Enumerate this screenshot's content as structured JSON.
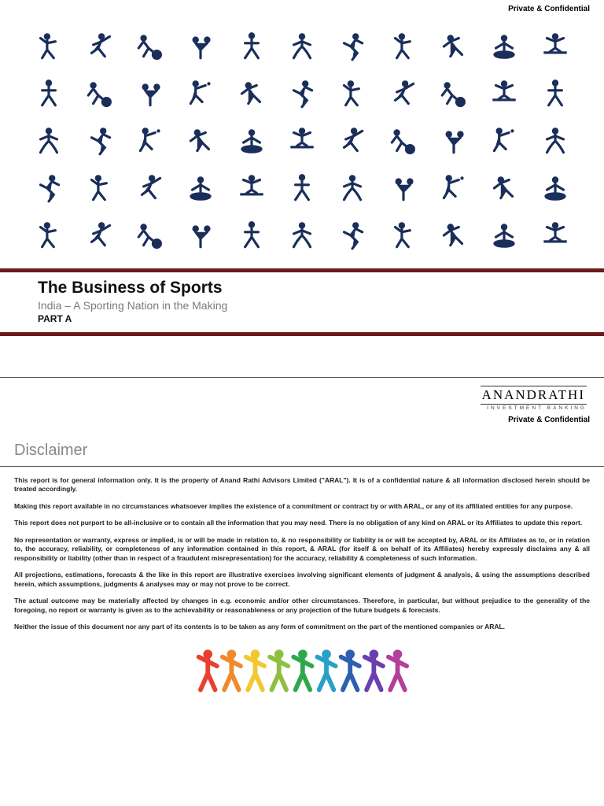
{
  "page1": {
    "confidential": "Private & Confidential",
    "title": "The Business of Sports",
    "subtitle": "India – A Sporting Nation in the Making",
    "part": "PART A",
    "pictogram_color": "#1a2e5a",
    "pictogram_grid": {
      "rows": 5,
      "cols": 11
    },
    "bar_color": "#6d1a1a"
  },
  "page2": {
    "brand_name": "ANANDRATHI",
    "brand_tagline": "INVESTMENT BANKING",
    "confidential": "Private & Confidential",
    "disclaimer_heading": "Disclaimer",
    "paragraphs": [
      "This report is for general information only. It is the property of Anand Rathi Advisors Limited (\"ARAL\"). It is of a confidential nature & all information disclosed herein should be treated accordingly.",
      "Making this report available in no circumstances whatsoever implies the existence of a commitment or contract by or with ARAL, or any of its affiliated entities for any purpose.",
      "This report does not purport to be all-inclusive or to contain all the information that you may need. There is no obligation of any kind on ARAL or its Affiliates to update this report.",
      "No representation or warranty, express or implied, is or will be made in relation to, & no responsibility or liability is or will be accepted by, ARAL or its Affiliates as to, or in relation to, the accuracy, reliability, or completeness of any information contained in this report, & ARAL (for itself & on behalf of its Affiliates) hereby expressly disclaims any & all responsibility or liability (other than in respect of a fraudulent misrepresentation) for the accuracy, reliability & completeness of such information.",
      "All projections, estimations, forecasts & the like in this report are illustrative exercises involving significant elements of judgment & analysis, & using the assumptions described herein, which assumptions, judgments & analyses may or may not prove to be correct.",
      "The actual outcome may be materially affected by changes in e.g. economic and/or other circumstances. Therefore, in particular, but without prejudice to the generality of the foregoing, no report or warranty is given as to the achievability or reasonableness or any projection of the future budgets & forecasts.",
      "Neither the issue of this document nor any part of its contents is to be taken as any form of commitment on the part of the mentioned companies or ARAL."
    ],
    "rainbow_colors": [
      "#e8412f",
      "#f08a2c",
      "#f2c730",
      "#8fbf3f",
      "#2ea84f",
      "#2aa0c8",
      "#2e5fb0",
      "#6a3fb0",
      "#b33f9a"
    ]
  }
}
